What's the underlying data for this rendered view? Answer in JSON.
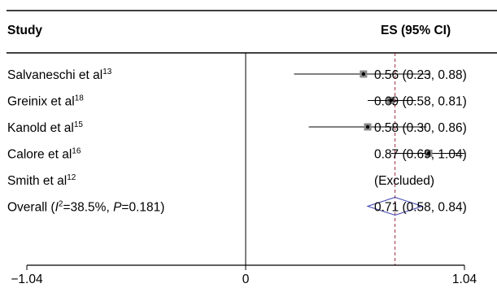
{
  "chart_data": {
    "type": "forest",
    "headers": {
      "study": "Study",
      "es": "ES (95% CI)"
    },
    "xlim": [
      -1.04,
      1.04
    ],
    "x_ticks": [
      -1.04,
      0,
      1.04
    ],
    "x_tick_labels": [
      "−1.04",
      "0",
      "1.04"
    ],
    "null_line": 0,
    "overall_line": 0.71,
    "studies": [
      {
        "name": "Salvaneschi et al",
        "ref": "13",
        "es": 0.56,
        "lo": 0.23,
        "hi": 0.88,
        "es_text": "0.56 (0.23, 0.88)"
      },
      {
        "name": "Greinix et al",
        "ref": "18",
        "es": 0.69,
        "lo": 0.58,
        "hi": 0.81,
        "es_text": "0.69 (0.58, 0.81)"
      },
      {
        "name": "Kanold et al",
        "ref": "15",
        "es": 0.58,
        "lo": 0.3,
        "hi": 0.86,
        "es_text": "0.58 (0.30, 0.86)"
      },
      {
        "name": "Calore et al",
        "ref": "16",
        "es": 0.87,
        "lo": 0.69,
        "hi": 1.04,
        "es_text": "0.87 (0.69, 1.04)"
      },
      {
        "name": "Smith et al",
        "ref": "12",
        "es": null,
        "lo": null,
        "hi": null,
        "es_text": "(Excluded)"
      }
    ],
    "overall": {
      "prefix": "Overall (",
      "i2_symbol": "I",
      "i2_sup": "2",
      "i2_value": "=38.5%, ",
      "p_symbol": "P",
      "p_value": "=0.181)",
      "es": 0.71,
      "lo": 0.58,
      "hi": 0.84,
      "es_text": "0.71 (0.58, 0.84)"
    }
  }
}
